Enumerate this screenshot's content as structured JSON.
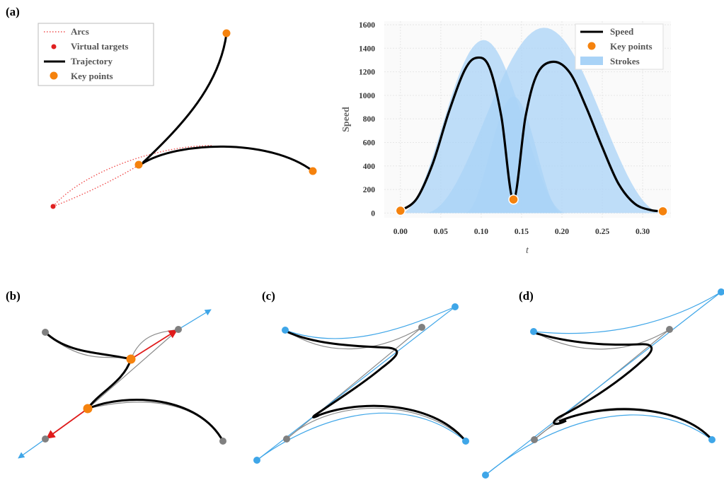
{
  "panels": {
    "a": "(a)",
    "b": "(b)",
    "c": "(c)",
    "d": "(d)"
  },
  "legend_a": {
    "items": [
      {
        "label": "Arcs",
        "marker": "dotted-line",
        "color": "#f05050"
      },
      {
        "label": "Virtual targets",
        "marker": "dot",
        "color": "#e02020"
      },
      {
        "label": "Trajectory",
        "marker": "line",
        "color": "#000000"
      },
      {
        "label": "Key points",
        "marker": "dot",
        "color": "#f5820d"
      }
    ]
  },
  "chart_data": {
    "type": "area",
    "xlabel": "t",
    "ylabel": "Speed",
    "xlim": [
      -0.02,
      0.335
    ],
    "ylim": [
      -40,
      1630
    ],
    "xticks": [
      "0.00",
      "0.05",
      "0.10",
      "0.15",
      "0.20",
      "0.25",
      "0.30"
    ],
    "yticks": [
      "0",
      "200",
      "400",
      "600",
      "800",
      "1000",
      "1200",
      "1400",
      "1600"
    ],
    "grid": true,
    "legend_position": "top-right",
    "legend": [
      {
        "label": "Speed",
        "marker": "line",
        "color": "#000000"
      },
      {
        "label": "Key points",
        "marker": "dot",
        "color": "#f5820d"
      },
      {
        "label": "Strokes",
        "marker": "patch",
        "color": "#a9d3f7"
      }
    ],
    "strokes": [
      {
        "peak_t": 0.103,
        "peak": 1470,
        "t0": 0.0,
        "t1": 0.205
      },
      {
        "peak_t": 0.178,
        "peak": 1575,
        "t0": 0.03,
        "t1": 0.325
      },
      {
        "peak_t": 0.14,
        "peak": 990,
        "t0": 0.08,
        "t1": 0.2
      }
    ],
    "speed": {
      "t": [
        0.0,
        0.02,
        0.04,
        0.06,
        0.08,
        0.095,
        0.11,
        0.125,
        0.14,
        0.155,
        0.17,
        0.19,
        0.21,
        0.23,
        0.25,
        0.27,
        0.29,
        0.31,
        0.325
      ],
      "values": [
        20,
        120,
        420,
        860,
        1220,
        1320,
        1240,
        820,
        115,
        820,
        1190,
        1285,
        1190,
        900,
        560,
        250,
        80,
        25,
        15
      ]
    },
    "key_points": [
      {
        "t": 0.0,
        "v": 20
      },
      {
        "t": 0.14,
        "v": 115
      },
      {
        "t": 0.325,
        "v": 15
      }
    ]
  },
  "colors": {
    "key_point": "#f5820d",
    "control_point": "#808080",
    "blue_point": "#3fa6e8",
    "tangent": "#e01b1b",
    "blue_line": "#3fa6e8",
    "gray_line": "#8a8a8a",
    "trajectory": "#000000",
    "arc": "#f05050",
    "stroke_fill": "#a9d3f7"
  }
}
